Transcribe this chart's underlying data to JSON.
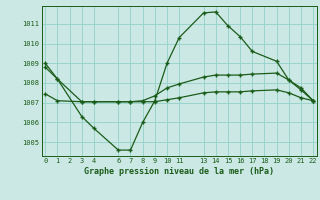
{
  "bg_color": "#cce8e4",
  "grid_color": "#99d4cc",
  "line_color": "#1a5c1a",
  "x_label": "Graphe pression niveau de la mer (hPa)",
  "xlim": [
    -0.3,
    22.3
  ],
  "ylim": [
    1004.3,
    1011.9
  ],
  "yticks": [
    1005,
    1006,
    1007,
    1008,
    1009,
    1010,
    1011
  ],
  "x_ticks": [
    0,
    1,
    2,
    3,
    4,
    6,
    7,
    8,
    9,
    10,
    11,
    13,
    14,
    15,
    16,
    17,
    18,
    19,
    20,
    21,
    22
  ],
  "x_tick_labels": [
    "0",
    "1",
    "2",
    "3",
    "4",
    "6",
    "7",
    "8",
    "9",
    "10",
    "11",
    "13",
    "14",
    "15",
    "16",
    "17",
    "18",
    "19",
    "20",
    "21",
    "22"
  ],
  "line1_x": [
    0,
    1,
    3,
    4,
    6,
    7,
    8,
    9,
    10,
    11,
    13,
    14,
    15,
    16,
    17,
    19,
    20,
    21,
    22
  ],
  "line1_y": [
    1009.0,
    1008.2,
    1006.3,
    1005.7,
    1004.6,
    1004.6,
    1006.0,
    1007.1,
    1009.0,
    1010.3,
    1011.55,
    1011.6,
    1010.9,
    1010.35,
    1009.6,
    1009.1,
    1008.15,
    1007.65,
    1007.1
  ],
  "line2_x": [
    0,
    1,
    3,
    4,
    6,
    7,
    8,
    9,
    10,
    11,
    13,
    14,
    15,
    16,
    17,
    19,
    20,
    21,
    22
  ],
  "line2_y": [
    1008.8,
    1008.2,
    1007.05,
    1007.05,
    1007.05,
    1007.05,
    1007.1,
    1007.35,
    1007.75,
    1007.95,
    1008.3,
    1008.4,
    1008.4,
    1008.4,
    1008.45,
    1008.5,
    1008.15,
    1007.75,
    1007.1
  ],
  "line3_x": [
    0,
    1,
    3,
    4,
    6,
    7,
    8,
    9,
    10,
    11,
    13,
    14,
    15,
    16,
    17,
    19,
    20,
    21,
    22
  ],
  "line3_y": [
    1007.45,
    1007.1,
    1007.05,
    1007.05,
    1007.05,
    1007.05,
    1007.05,
    1007.05,
    1007.15,
    1007.25,
    1007.5,
    1007.55,
    1007.55,
    1007.55,
    1007.6,
    1007.65,
    1007.5,
    1007.25,
    1007.1
  ]
}
